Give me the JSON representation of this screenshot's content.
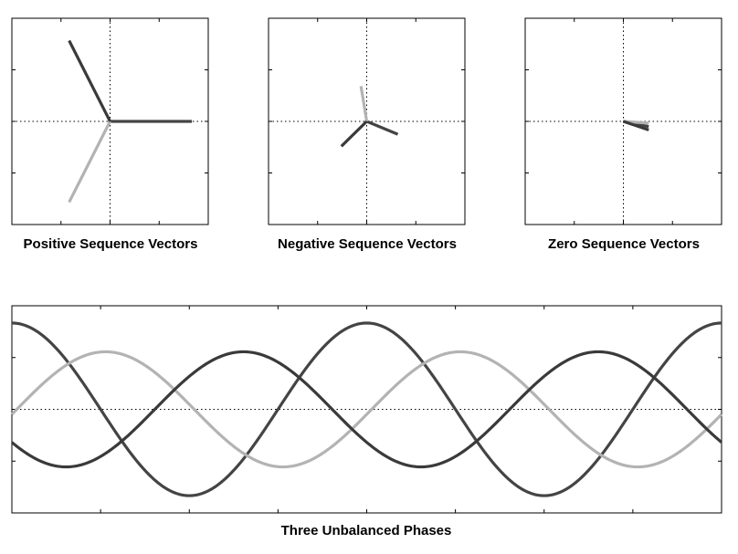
{
  "captions": {
    "positive": "Positive Sequence Vectors",
    "negative": "Negative Sequence Vectors",
    "zero": "Zero Sequence Vectors",
    "waveform": "Three Unbalanced Phases"
  },
  "colors": {
    "phase_a": "#444444",
    "phase_b": "#b3b3b3",
    "phase_c": "#3a3a3a",
    "frame": "#000000",
    "axis_dotted": "#000000"
  },
  "chart_data": [
    {
      "type": "vector",
      "panel": "positive",
      "title": "Positive Sequence Vectors",
      "xlim": [
        -1.2,
        1.2
      ],
      "ylim": [
        -1.2,
        1.2
      ],
      "vectors": [
        {
          "phase": "a",
          "x": 1.0,
          "y": 0.0
        },
        {
          "phase": "b",
          "x": -0.5,
          "y": -0.94
        },
        {
          "phase": "c",
          "x": -0.5,
          "y": 0.94
        }
      ]
    },
    {
      "type": "vector",
      "panel": "negative",
      "title": "Negative Sequence Vectors",
      "xlim": [
        -1.2,
        1.2
      ],
      "ylim": [
        -1.2,
        1.2
      ],
      "vectors": [
        {
          "phase": "a",
          "x": 0.38,
          "y": -0.15
        },
        {
          "phase": "b",
          "x": -0.07,
          "y": 0.41
        },
        {
          "phase": "c",
          "x": -0.31,
          "y": -0.29
        }
      ]
    },
    {
      "type": "vector",
      "panel": "zero",
      "title": "Zero Sequence Vectors",
      "xlim": [
        -1.2,
        1.2
      ],
      "ylim": [
        -1.2,
        1.2
      ],
      "vectors": [
        {
          "phase": "a",
          "x": 0.31,
          "y": -0.06
        },
        {
          "phase": "b",
          "x": 0.31,
          "y": -0.02
        },
        {
          "phase": "c",
          "x": 0.31,
          "y": -0.1
        }
      ]
    },
    {
      "type": "line",
      "panel": "waveform",
      "title": "Three Unbalanced Phases",
      "xlim": [
        0,
        720
      ],
      "ylim": [
        -1.8,
        1.8
      ],
      "grid": false,
      "series": [
        {
          "phase": "a",
          "amplitude": 1.5,
          "phase_deg": 0
        },
        {
          "phase": "b",
          "amplitude": 1.0,
          "phase_deg": -95
        },
        {
          "phase": "c",
          "amplitude": 1.0,
          "phase_deg": 125
        }
      ]
    }
  ]
}
